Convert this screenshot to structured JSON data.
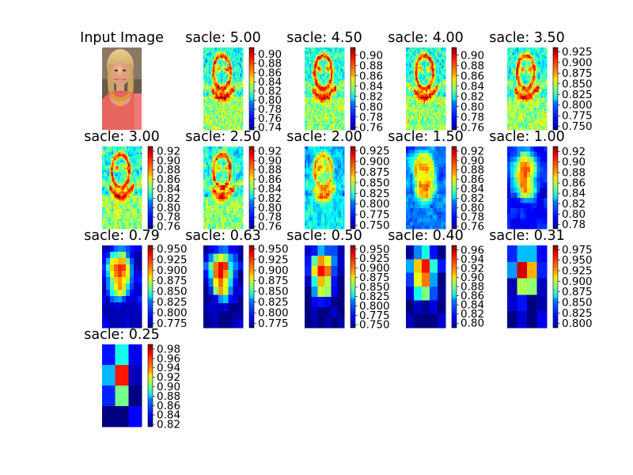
{
  "figure": {
    "background": "#ffffff"
  },
  "input_panel": {
    "title": "Input Image"
  },
  "chart_data": {
    "type": "heatmap",
    "colormap": "jet",
    "panels": [
      {
        "title": "sacle: 5.00",
        "scale": 5.0,
        "ticks": [
          "0.90",
          "0.88",
          "0.86",
          "0.84",
          "0.82",
          "0.80",
          "0.78",
          "0.76",
          "0.74"
        ],
        "vmin": 0.735,
        "vmax": 0.915,
        "grid": [
          48,
          64
        ]
      },
      {
        "title": "sacle: 4.50",
        "scale": 4.5,
        "ticks": [
          "0.90",
          "0.88",
          "0.86",
          "0.84",
          "0.82",
          "0.80",
          "0.78",
          "0.76"
        ],
        "vmin": 0.755,
        "vmax": 0.915,
        "grid": [
          44,
          58
        ]
      },
      {
        "title": "sacle: 4.00",
        "scale": 4.0,
        "ticks": [
          "0.90",
          "0.88",
          "0.86",
          "0.84",
          "0.82",
          "0.80",
          "0.78",
          "0.76"
        ],
        "vmin": 0.755,
        "vmax": 0.915,
        "grid": [
          40,
          52
        ]
      },
      {
        "title": "sacle: 3.50",
        "scale": 3.5,
        "ticks": [
          "0.925",
          "0.900",
          "0.875",
          "0.850",
          "0.825",
          "0.800",
          "0.775",
          "0.750"
        ],
        "vmin": 0.742,
        "vmax": 0.935,
        "grid": [
          36,
          46
        ]
      },
      {
        "title": "sacle: 3.00",
        "scale": 3.0,
        "ticks": [
          "0.92",
          "0.90",
          "0.88",
          "0.86",
          "0.84",
          "0.82",
          "0.80",
          "0.78",
          "0.76"
        ],
        "vmin": 0.755,
        "vmax": 0.93,
        "grid": [
          32,
          42
        ]
      },
      {
        "title": "sacle: 2.50",
        "scale": 2.5,
        "ticks": [
          "0.92",
          "0.90",
          "0.88",
          "0.86",
          "0.84",
          "0.82",
          "0.80",
          "0.78",
          "0.76"
        ],
        "vmin": 0.755,
        "vmax": 0.93,
        "grid": [
          28,
          36
        ]
      },
      {
        "title": "sacle: 2.00",
        "scale": 2.0,
        "ticks": [
          "0.925",
          "0.900",
          "0.875",
          "0.850",
          "0.825",
          "0.800",
          "0.775",
          "0.750"
        ],
        "vmin": 0.742,
        "vmax": 0.935,
        "grid": [
          24,
          30
        ]
      },
      {
        "title": "sacle: 1.50",
        "scale": 1.5,
        "ticks": [
          "0.92",
          "0.90",
          "0.88",
          "0.86",
          "0.84",
          "0.82",
          "0.80",
          "0.78",
          "0.76"
        ],
        "vmin": 0.755,
        "vmax": 0.93,
        "grid": [
          18,
          24
        ]
      },
      {
        "title": "sacle: 1.00",
        "scale": 1.0,
        "ticks": [
          "0.92",
          "0.90",
          "0.88",
          "0.86",
          "0.84",
          "0.82",
          "0.80",
          "0.78"
        ],
        "vmin": 0.772,
        "vmax": 0.93,
        "grid": [
          12,
          16
        ]
      },
      {
        "title": "sacle: 0.79",
        "scale": 0.79,
        "ticks": [
          "0.950",
          "0.925",
          "0.900",
          "0.875",
          "0.850",
          "0.825",
          "0.800",
          "0.775"
        ],
        "vmin": 0.765,
        "vmax": 0.958,
        "grid": [
          10,
          13
        ]
      },
      {
        "title": "sacle: 0.63",
        "scale": 0.63,
        "ticks": [
          "0.950",
          "0.925",
          "0.900",
          "0.875",
          "0.850",
          "0.825",
          "0.800",
          "0.775"
        ],
        "vmin": 0.765,
        "vmax": 0.958,
        "grid": [
          8,
          10
        ]
      },
      {
        "title": "sacle: 0.50",
        "scale": 0.5,
        "ticks": [
          "0.950",
          "0.925",
          "0.900",
          "0.875",
          "0.850",
          "0.825",
          "0.800",
          "0.775",
          "0.750"
        ],
        "vmin": 0.742,
        "vmax": 0.96,
        "grid": [
          6,
          8
        ]
      },
      {
        "title": "sacle: 0.40",
        "scale": 0.4,
        "ticks": [
          "0.96",
          "0.94",
          "0.92",
          "0.90",
          "0.88",
          "0.86",
          "0.84",
          "0.82",
          "0.80"
        ],
        "vmin": 0.79,
        "vmax": 0.97,
        "grid": [
          5,
          6
        ]
      },
      {
        "title": "sacle: 0.31",
        "scale": 0.31,
        "ticks": [
          "0.975",
          "0.950",
          "0.925",
          "0.900",
          "0.875",
          "0.850",
          "0.825",
          "0.800"
        ],
        "vmin": 0.79,
        "vmax": 0.985,
        "grid": [
          4,
          5
        ]
      },
      {
        "title": "sacle: 0.25",
        "scale": 0.25,
        "ticks": [
          "0.98",
          "0.96",
          "0.94",
          "0.92",
          "0.90",
          "0.88",
          "0.86",
          "0.84",
          "0.82"
        ],
        "vmin": 0.815,
        "vmax": 0.99,
        "grid": [
          3,
          4
        ]
      }
    ]
  }
}
